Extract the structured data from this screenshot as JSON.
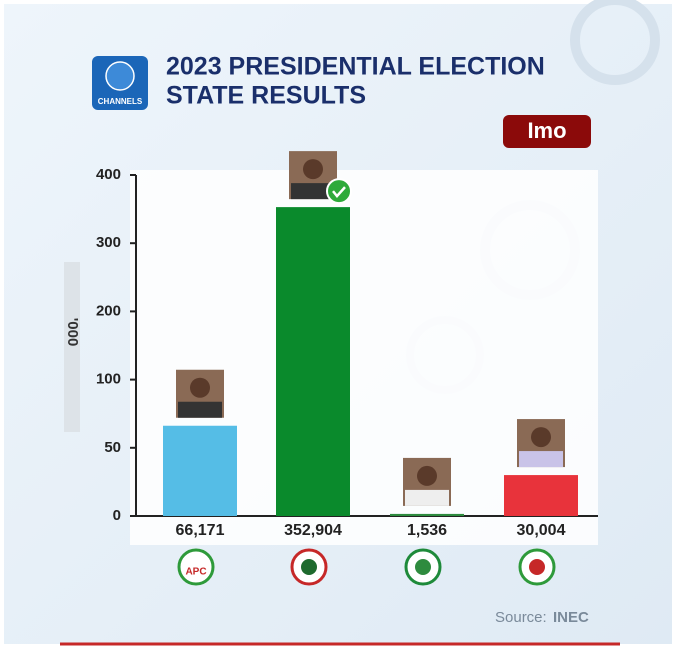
{
  "logo": "CHANNELS",
  "chart_data": {
    "type": "bar",
    "title": [
      "2023 PRESIDENTIAL ELECTION",
      "STATE RESULTS"
    ],
    "state": "Imo",
    "y_label": "'000",
    "categories": [
      "APC",
      null,
      null,
      null
    ],
    "values": [
      66.171,
      352.904,
      1.536,
      30.004
    ],
    "value_labels": [
      "66,171",
      "352,904",
      "1,536",
      "30,004"
    ],
    "colors": [
      "#55bde6",
      "#0a8a2c",
      "#2e8b3e",
      "#e8333b"
    ],
    "ylim": [
      0,
      400
    ],
    "yticks": [
      0,
      50,
      100,
      200,
      300,
      400
    ],
    "source_label": "Source:",
    "source": "INEC"
  }
}
